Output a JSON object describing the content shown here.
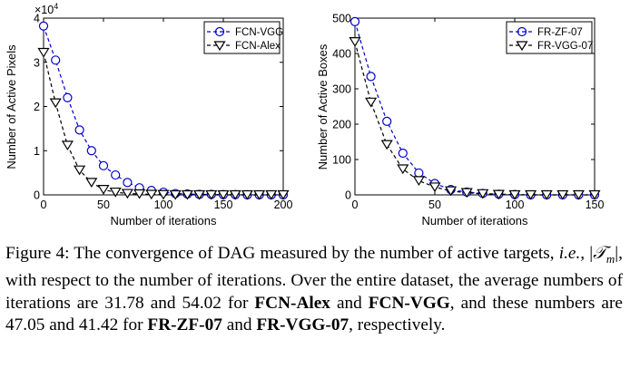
{
  "chart_data": [
    {
      "type": "line",
      "ylabel": "Number of Active Pixels",
      "xlabel": "Number of iterations",
      "xlim": [
        0,
        200
      ],
      "ylim": [
        0,
        4
      ],
      "y_multiplier_label": "×10",
      "y_multiplier_exp": "4",
      "xticks": [
        "0",
        "50",
        "100",
        "150",
        "200"
      ],
      "yticks": [
        "0",
        "1",
        "2",
        "3",
        "4"
      ],
      "legend_position": "top-right",
      "grid": false,
      "series": [
        {
          "name": "FCN-VGG",
          "color": "#0000cc",
          "marker": "circle",
          "x": [
            0,
            10,
            20,
            30,
            40,
            50,
            60,
            70,
            80,
            90,
            100,
            110,
            120,
            130,
            140,
            150,
            160,
            170,
            180,
            190,
            200
          ],
          "y": [
            3.82,
            3.05,
            2.2,
            1.47,
            1.0,
            0.66,
            0.45,
            0.28,
            0.16,
            0.1,
            0.06,
            0.03,
            0.02,
            0.01,
            0.01,
            0.005,
            0.005,
            0.0,
            0.0,
            0.0,
            0.0
          ]
        },
        {
          "name": "FCN-Alex",
          "color": "#000000",
          "marker": "triangle-down",
          "x": [
            0,
            10,
            20,
            30,
            40,
            50,
            60,
            70,
            80,
            90,
            100,
            110,
            120,
            130,
            140,
            150,
            160,
            170,
            180,
            190,
            200
          ],
          "y": [
            3.22,
            2.08,
            1.12,
            0.56,
            0.28,
            0.12,
            0.06,
            0.03,
            0.02,
            0.01,
            0.005,
            0.0,
            0.0,
            0.0,
            0.0,
            0.0,
            0.0,
            0.0,
            0.0,
            0.0,
            0.0
          ]
        }
      ]
    },
    {
      "type": "line",
      "ylabel": "Number of Active Boxes",
      "xlabel": "Number of iterations",
      "xlim": [
        0,
        150
      ],
      "ylim": [
        0,
        500
      ],
      "xticks": [
        "0",
        "50",
        "100",
        "150"
      ],
      "yticks": [
        "0",
        "100",
        "200",
        "300",
        "400",
        "500"
      ],
      "legend_position": "top-right",
      "grid": false,
      "series": [
        {
          "name": "FR-ZF-07",
          "color": "#0000cc",
          "marker": "circle",
          "x": [
            0,
            10,
            20,
            30,
            40,
            50,
            60,
            70,
            80,
            90,
            100,
            110,
            120,
            130,
            140,
            150
          ],
          "y": [
            490,
            335,
            208,
            118,
            62,
            32,
            15,
            8,
            4,
            2,
            1,
            0,
            0,
            0,
            0,
            0
          ]
        },
        {
          "name": "FR-VGG-07",
          "color": "#000000",
          "marker": "triangle-down",
          "x": [
            0,
            10,
            20,
            30,
            40,
            50,
            60,
            70,
            80,
            90,
            100,
            110,
            120,
            130,
            140,
            150
          ],
          "y": [
            433,
            262,
            142,
            73,
            40,
            22,
            11,
            6,
            3,
            1,
            0,
            0,
            0,
            0,
            0,
            0
          ]
        }
      ]
    }
  ],
  "caption": {
    "label": "Figure 4:",
    "p1": "The convergence of DAG measured by the number of active targets,",
    "ie": "i.e.,",
    "p2": ", with respect to the number of iterations. Over the entire dataset, the average numbers of iterations are",
    "v1": "31.78",
    "and1": "and",
    "v2": "54.02",
    "for1": "for",
    "n1": "FCN-Alex",
    "and2": "and",
    "n2": "FCN-VGG",
    "p3": ", and these numbers are",
    "v3": "47.05",
    "and3": "and",
    "v4": "41.42",
    "for2": "for",
    "n3": "FR-ZF-07",
    "and4": "and",
    "n4": "FR-VGG-07",
    "p4": ", respectively."
  }
}
